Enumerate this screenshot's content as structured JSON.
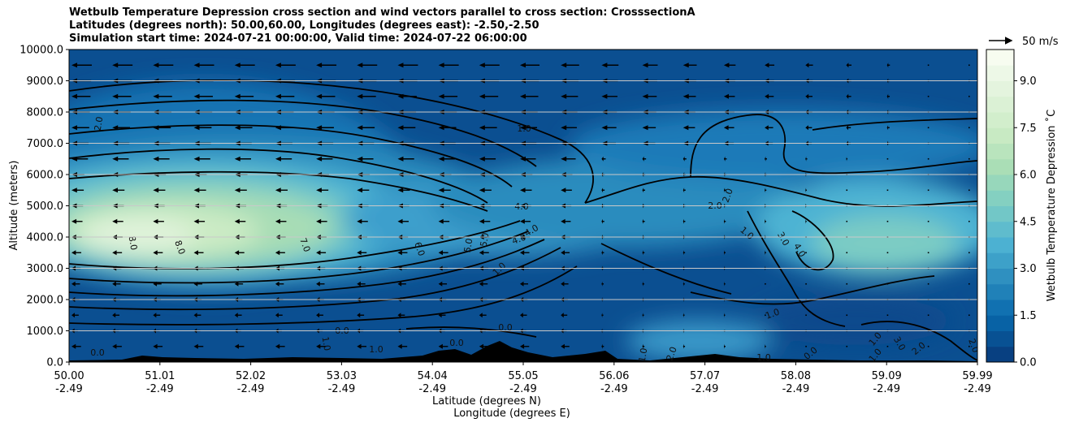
{
  "title": {
    "line1": "Wetbulb Temperature Depression cross section and wind vectors parallel to cross section: CrosssectionA",
    "line2": "Latitudes (degrees north): 50.00,60.00, Longitudes (degrees east): -2.50,-2.50",
    "line3": "Simulation start time: 2024-07-21 00:00:00, Valid time: 2024-07-22 06:00:00"
  },
  "chart_data": {
    "type": "heatmap",
    "subtype": "filled contour cross section with wind vectors",
    "xlabel": "Latitude (degrees N)",
    "xlabel2": "Longitude (degrees E)",
    "ylabel": "Altitude (meters)",
    "colorbar_label": "Wetbulb Temperature Depression ˚C",
    "colormap": "GnBu",
    "xlim": [
      50.0,
      59.99
    ],
    "ylim": [
      0,
      10000
    ],
    "x_ticks": [
      {
        "lat": "50.00",
        "lon": "-2.49"
      },
      {
        "lat": "51.01",
        "lon": "-2.49"
      },
      {
        "lat": "52.02",
        "lon": "-2.49"
      },
      {
        "lat": "53.03",
        "lon": "-2.49"
      },
      {
        "lat": "54.04",
        "lon": "-2.49"
      },
      {
        "lat": "55.05",
        "lon": "-2.49"
      },
      {
        "lat": "56.06",
        "lon": "-2.49"
      },
      {
        "lat": "57.07",
        "lon": "-2.49"
      },
      {
        "lat": "58.08",
        "lon": "-2.49"
      },
      {
        "lat": "59.09",
        "lon": "-2.49"
      },
      {
        "lat": "59.99",
        "lon": "-2.49"
      }
    ],
    "y_ticks": [
      "0.0",
      "1000.0",
      "2000.0",
      "3000.0",
      "4000.0",
      "5000.0",
      "6000.0",
      "7000.0",
      "8000.0",
      "9000.0",
      "10000.0"
    ],
    "colorbar_range": [
      0,
      10
    ],
    "colorbar_ticks": [
      "0.0",
      "1.5",
      "3.0",
      "4.5",
      "6.0",
      "7.5",
      "9.0"
    ],
    "grid": "horizontal lines at y ticks",
    "quiver_key": "50 m/s",
    "dry_region": {
      "lat": 52.6,
      "alt": 3900,
      "max_depression": 9.5
    },
    "contour_labels": [
      "0.0",
      "1.0",
      "2.0",
      "3.0",
      "4.0",
      "5.0",
      "6.0",
      "7.0",
      "8.0"
    ],
    "wind_field": {
      "description": "easterly winds (vectors pointing south along section) strongest aloft above 6000 m between 50 and 57 N",
      "max_speed_ms": 45,
      "levels_m": [
        500,
        1000,
        1500,
        2000,
        2500,
        3000,
        3500,
        4000,
        4500,
        5000,
        5500,
        6000,
        6500,
        7000,
        7500,
        8000,
        8500,
        9000,
        9500
      ]
    }
  }
}
